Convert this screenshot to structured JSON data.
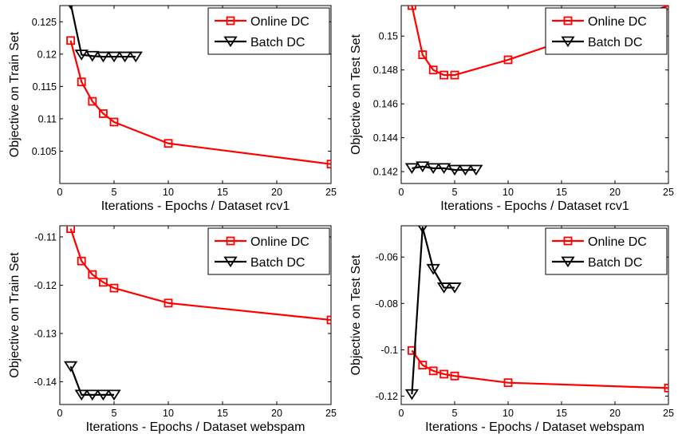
{
  "chart_data": [
    {
      "type": "line",
      "xlabel": "Iterations - Epochs / Dataset rcv1",
      "ylabel": "Objective on Train Set",
      "xlim": [
        0,
        25
      ],
      "ylim": [
        0.1,
        0.1275
      ],
      "xticks": [
        0,
        5,
        10,
        15,
        20,
        25
      ],
      "yticks": [
        0.105,
        0.11,
        0.115,
        0.12,
        0.125
      ],
      "ytick_labels": [
        "0.105",
        "0.11",
        "0.115",
        "0.12",
        "0.125"
      ],
      "legend": "top-right",
      "grid": false,
      "series": [
        {
          "name": "Online DC",
          "color": "#ff0000",
          "marker": "square",
          "x": [
            1,
            2,
            3,
            4,
            5,
            10,
            25
          ],
          "y": [
            0.1221,
            0.1157,
            0.1127,
            0.1108,
            0.1095,
            0.1062,
            0.103
          ]
        },
        {
          "name": "Batch DC",
          "color": "#000000",
          "marker": "triangle-down",
          "x": [
            1,
            2,
            3,
            4,
            5,
            6,
            7
          ],
          "y": [
            0.1278,
            0.1199,
            0.1197,
            0.1196,
            0.1196,
            0.1196,
            0.1196
          ]
        }
      ]
    },
    {
      "type": "line",
      "xlabel": "Iterations - Epochs / Dataset rcv1",
      "ylabel": "Objective on Test Set",
      "xlim": [
        0,
        25
      ],
      "ylim": [
        0.1413,
        0.1518
      ],
      "xticks": [
        0,
        5,
        10,
        15,
        20,
        25
      ],
      "yticks": [
        0.142,
        0.144,
        0.146,
        0.148,
        0.15
      ],
      "ytick_labels": [
        "0.142",
        "0.144",
        "0.146",
        "0.148",
        "0.15"
      ],
      "legend": "top-right",
      "grid": false,
      "series": [
        {
          "name": "Online DC",
          "color": "#ff0000",
          "marker": "square",
          "x": [
            1,
            2,
            3,
            4,
            5,
            10,
            25
          ],
          "y": [
            0.1518,
            0.1489,
            0.148,
            0.1477,
            0.1477,
            0.1486,
            0.1518
          ]
        },
        {
          "name": "Batch DC",
          "color": "#000000",
          "marker": "triangle-down",
          "x": [
            1,
            2,
            3,
            4,
            5,
            6,
            7
          ],
          "y": [
            0.1422,
            0.1423,
            0.1422,
            0.1422,
            0.1421,
            0.1421,
            0.1421
          ]
        }
      ]
    },
    {
      "type": "line",
      "xlabel": "Iterations - Epochs / Dataset webspam",
      "ylabel": "Objective on Train Set",
      "xlim": [
        0,
        25
      ],
      "ylim": [
        -0.1447,
        -0.1077
      ],
      "xticks": [
        0,
        5,
        10,
        15,
        20,
        25
      ],
      "yticks": [
        -0.14,
        -0.13,
        -0.12,
        -0.11
      ],
      "ytick_labels": [
        "-0.14",
        "-0.13",
        "-0.12",
        "-0.11"
      ],
      "legend": "top-right",
      "grid": false,
      "series": [
        {
          "name": "Online DC",
          "color": "#ff0000",
          "marker": "square",
          "x": [
            1,
            2,
            3,
            4,
            5,
            10,
            25
          ],
          "y": [
            -0.1083,
            -0.115,
            -0.1178,
            -0.1194,
            -0.1206,
            -0.1237,
            -0.1272
          ]
        },
        {
          "name": "Batch DC",
          "color": "#000000",
          "marker": "triangle-down",
          "x": [
            1,
            2,
            3,
            4,
            5
          ],
          "y": [
            -0.1368,
            -0.1427,
            -0.1427,
            -0.1427,
            -0.1427
          ]
        }
      ]
    },
    {
      "type": "line",
      "xlabel": "Iterations - Epochs / Dataset webspam",
      "ylabel": "Objective on Test Set",
      "xlim": [
        0,
        25
      ],
      "ylim": [
        -0.1236,
        -0.0465
      ],
      "xticks": [
        0,
        5,
        10,
        15,
        20,
        25
      ],
      "yticks": [
        -0.12,
        -0.1,
        -0.08,
        -0.06
      ],
      "ytick_labels": [
        "-0.12",
        "-0.1",
        "-0.08",
        "-0.06"
      ],
      "legend": "top-right",
      "grid": false,
      "series": [
        {
          "name": "Online DC",
          "color": "#ff0000",
          "marker": "square",
          "x": [
            1,
            2,
            3,
            4,
            5,
            10,
            25
          ],
          "y": [
            -0.1003,
            -0.1066,
            -0.1091,
            -0.1105,
            -0.1113,
            -0.1142,
            -0.1165
          ]
        },
        {
          "name": "Batch DC",
          "color": "#000000",
          "marker": "triangle-down",
          "x": [
            1,
            2,
            3,
            4,
            5
          ],
          "y": [
            -0.1192,
            -0.0472,
            -0.0652,
            -0.0732,
            -0.0732
          ]
        }
      ]
    }
  ]
}
